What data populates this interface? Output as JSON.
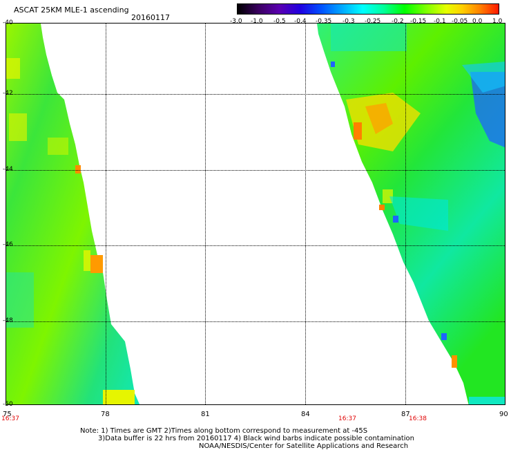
{
  "header": {
    "title": "ASCAT 25KM MLE-1 ascending",
    "date": "20160117"
  },
  "colorbar": {
    "labels": [
      "-3.0",
      "-1.0",
      "-0.5",
      "-0.4",
      "-0.35",
      "-0.3",
      "-0.25",
      "-0.2",
      "-0.15",
      "-0.1",
      "-0.05",
      "0.0",
      "1.0"
    ]
  },
  "axes": {
    "lat_labels": [
      "-40",
      "-42",
      "-44",
      "-46",
      "-48",
      "-50"
    ],
    "lon_labels": [
      "75",
      "78",
      "81",
      "84",
      "87",
      "90"
    ]
  },
  "times": [
    "16:37",
    "16:37",
    "16:38"
  ],
  "notes": [
    "Note: 1) Times are GMT 2)Times along bottom correspond to measurement at -45S",
    "3)Data buffer is 22 hrs from 20160117 4) Black wind barbs indicate possible contamination",
    "NOAA/NESDIS/Center for Satellite Applications and Research"
  ],
  "colors": {
    "green": "#22e622",
    "light_green": "#7ef500",
    "cyan": "#00f5c8",
    "yellow": "#e6f500",
    "orange": "#ff8c00",
    "blue": "#1e64ff"
  }
}
